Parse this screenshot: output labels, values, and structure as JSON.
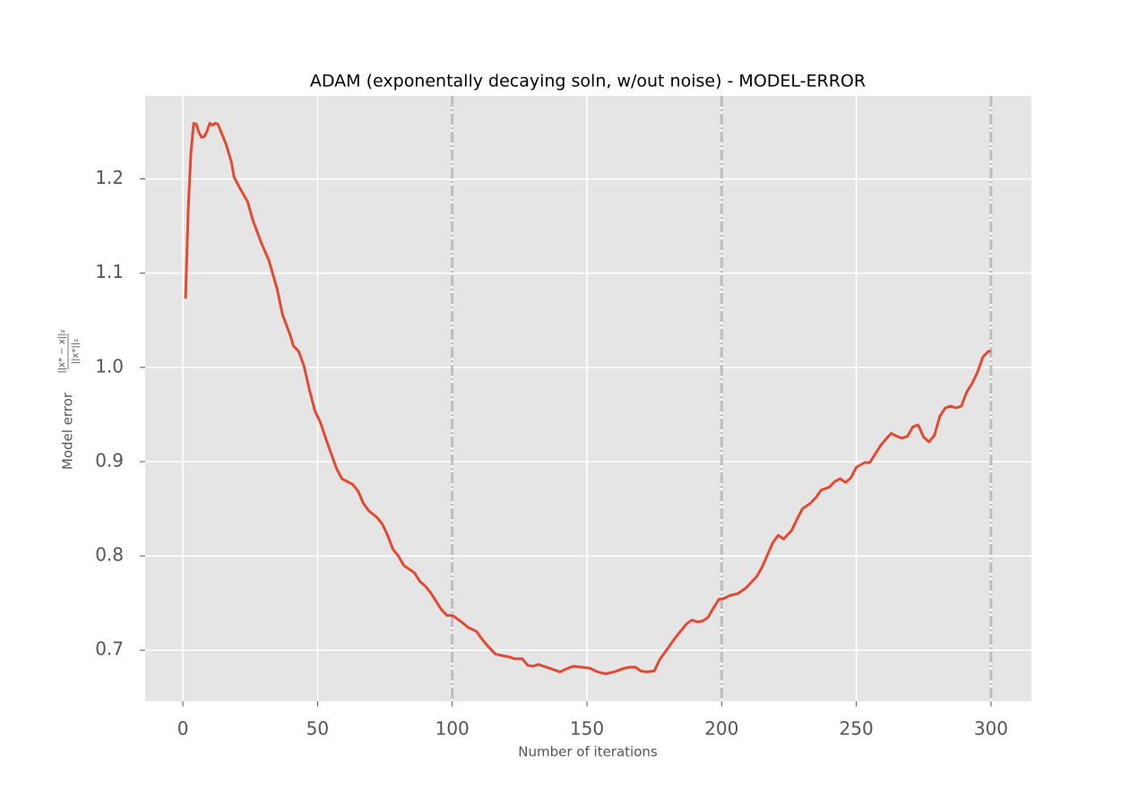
{
  "chart_data": {
    "type": "line",
    "title": "ADAM (exponentally decaying soln, w/out noise) - MODEL-ERROR",
    "xlabel": "Number of iterations",
    "ylabel": "Model error",
    "ylabel_fraction": {
      "numerator": "||x* − x||₂",
      "denominator": "||x*||₂"
    },
    "xlim": [
      -14,
      315
    ],
    "ylim": [
      0.646,
      1.288
    ],
    "xticks": [
      0,
      50,
      100,
      150,
      200,
      250,
      300
    ],
    "yticks": [
      0.7,
      0.8,
      0.9,
      {
        "value": 1,
        "label": "1.0"
      },
      1.1,
      1.2
    ],
    "grid": true,
    "vlines": [
      100,
      200,
      300
    ],
    "vline_color": "#bdbdbd",
    "series": [
      {
        "color": "#e24a33",
        "x": [
          1,
          2,
          3,
          4,
          5,
          6,
          7,
          8,
          9,
          10,
          11,
          12,
          13,
          14,
          16,
          18,
          19,
          21,
          24,
          26,
          29,
          32,
          35,
          37,
          40,
          41,
          43,
          45,
          47,
          49,
          51,
          53,
          55,
          57,
          59,
          61,
          63,
          65,
          67,
          69,
          72,
          74,
          76,
          78,
          80,
          82,
          84,
          86,
          88,
          90,
          92,
          94,
          96,
          98,
          100,
          103,
          106,
          109,
          111,
          113,
          116,
          119,
          121,
          123,
          126,
          128,
          130,
          132,
          135,
          137,
          140,
          143,
          145,
          148,
          151,
          154,
          157,
          160,
          162,
          164,
          166,
          168,
          170,
          172,
          175,
          177,
          180,
          183,
          185,
          187,
          189,
          191,
          193,
          195,
          197,
          199,
          201,
          203,
          206,
          209,
          211,
          213,
          215,
          217,
          219,
          221,
          223,
          226,
          228,
          230,
          233,
          235,
          237,
          240,
          242,
          244,
          246,
          248,
          250,
          253,
          255,
          257,
          259,
          261,
          263,
          265,
          267,
          269,
          271,
          273,
          275,
          277,
          279,
          281,
          283,
          285,
          287,
          289,
          291,
          293,
          295,
          297,
          299,
          300
        ],
        "values": [
          1.073,
          1.169,
          1.228,
          1.259,
          1.258,
          1.249,
          1.244,
          1.245,
          1.251,
          1.259,
          1.257,
          1.259,
          1.258,
          1.251,
          1.237,
          1.218,
          1.202,
          1.191,
          1.176,
          1.156,
          1.133,
          1.113,
          1.083,
          1.056,
          1.033,
          1.023,
          1.017,
          1.001,
          0.976,
          0.954,
          0.942,
          0.925,
          0.909,
          0.893,
          0.882,
          0.879,
          0.876,
          0.869,
          0.856,
          0.848,
          0.841,
          0.834,
          0.822,
          0.807,
          0.8,
          0.79,
          0.786,
          0.782,
          0.773,
          0.768,
          0.761,
          0.752,
          0.743,
          0.737,
          0.737,
          0.731,
          0.724,
          0.72,
          0.712,
          0.705,
          0.696,
          0.694,
          0.693,
          0.691,
          0.691,
          0.684,
          0.683,
          0.685,
          0.682,
          0.68,
          0.677,
          0.681,
          0.683,
          0.682,
          0.681,
          0.677,
          0.675,
          0.677,
          0.679,
          0.681,
          0.682,
          0.682,
          0.678,
          0.677,
          0.678,
          0.69,
          0.702,
          0.714,
          0.721,
          0.728,
          0.732,
          0.73,
          0.731,
          0.735,
          0.745,
          0.754,
          0.755,
          0.758,
          0.76,
          0.766,
          0.772,
          0.778,
          0.788,
          0.801,
          0.814,
          0.822,
          0.818,
          0.827,
          0.839,
          0.85,
          0.856,
          0.862,
          0.87,
          0.873,
          0.879,
          0.882,
          0.878,
          0.883,
          0.894,
          0.899,
          0.899,
          0.908,
          0.917,
          0.924,
          0.93,
          0.927,
          0.925,
          0.927,
          0.937,
          0.939,
          0.926,
          0.921,
          0.928,
          0.948,
          0.957,
          0.959,
          0.957,
          0.959,
          0.974,
          0.983,
          0.995,
          1.011,
          1.017,
          1.017
        ]
      }
    ]
  }
}
